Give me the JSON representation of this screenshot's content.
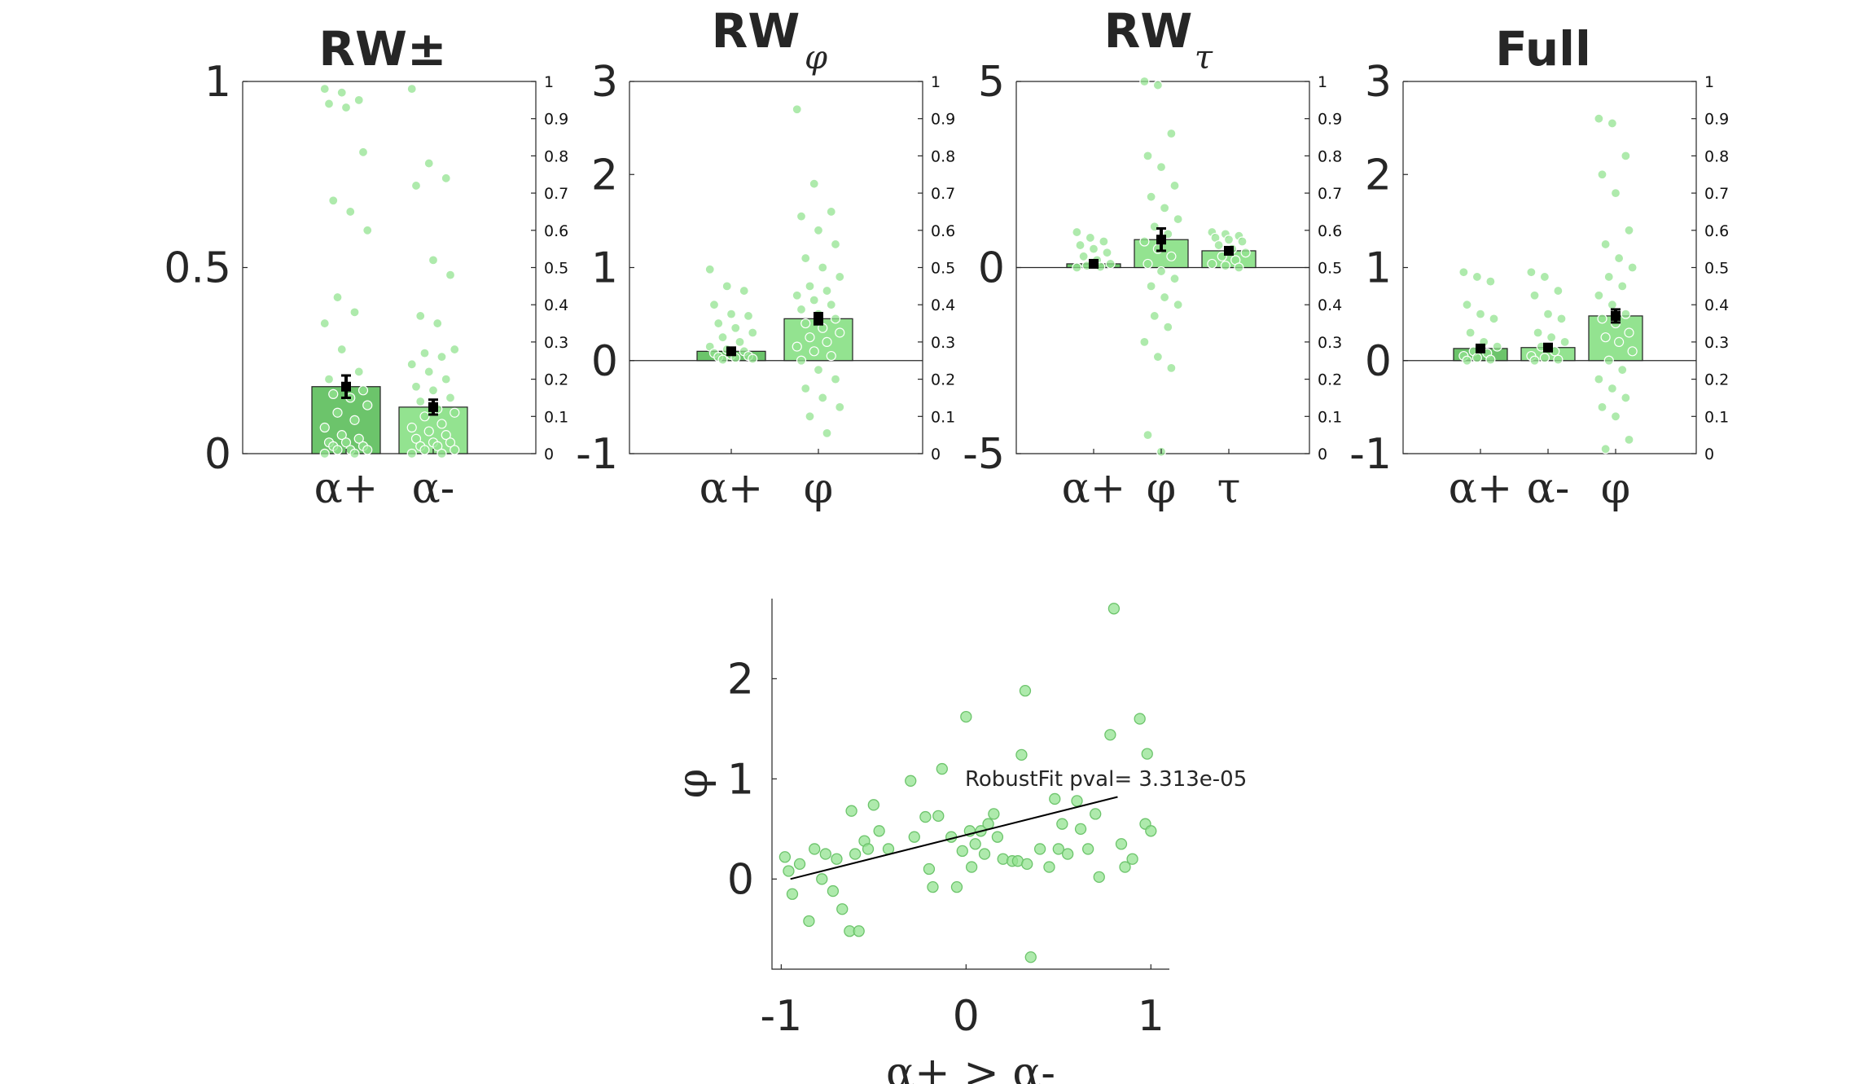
{
  "chart_data": [
    {
      "type": "bar",
      "title": "RW±",
      "subtitle": "",
      "categories": [
        "α+",
        "α-"
      ],
      "values": [
        0.18,
        0.125
      ],
      "errors": [
        0.03,
        0.02
      ],
      "ylim": [
        0,
        1
      ],
      "yticks": [
        "1",
        "0.5",
        "0"
      ],
      "ytick_values": [
        1,
        0.5,
        0
      ],
      "right_ticks": [
        "1",
        "0.9",
        "0.8",
        "0.7",
        "0.6",
        "0.5",
        "0.4",
        "0.3",
        "0.2",
        "0.1",
        "0"
      ],
      "points": [
        [
          0.98,
          0.97,
          0.95,
          0.94,
          0.93,
          0.81,
          0.68,
          0.65,
          0.6,
          0.42,
          0.38,
          0.35,
          0.28,
          0.22,
          0.2,
          0.18,
          0.17,
          0.16,
          0.15,
          0.13,
          0.11,
          0.09,
          0.07,
          0.05,
          0.04,
          0.03,
          0.03,
          0.02,
          0.02,
          0.01,
          0.01,
          0.01,
          0.0,
          0.0
        ],
        [
          0.98,
          0.78,
          0.74,
          0.72,
          0.52,
          0.48,
          0.37,
          0.35,
          0.28,
          0.27,
          0.26,
          0.24,
          0.22,
          0.2,
          0.18,
          0.17,
          0.15,
          0.14,
          0.12,
          0.11,
          0.1,
          0.08,
          0.07,
          0.06,
          0.05,
          0.04,
          0.03,
          0.03,
          0.02,
          0.02,
          0.01,
          0.01,
          0.0,
          0.0
        ]
      ]
    },
    {
      "type": "bar",
      "title": "RW",
      "subtitle": "φ",
      "categories": [
        "α+",
        "φ"
      ],
      "values": [
        0.1,
        0.45
      ],
      "errors": [
        0.03,
        0.06
      ],
      "ylim": [
        -1,
        3
      ],
      "yticks": [
        "3",
        "2",
        "1",
        "0",
        "-1"
      ],
      "ytick_values": [
        3,
        2,
        1,
        0,
        -1
      ],
      "right_ticks": [
        "1",
        "0.9",
        "0.8",
        "0.7",
        "0.6",
        "0.5",
        "0.4",
        "0.3",
        "0.2",
        "0.1",
        "0"
      ],
      "points": [
        [
          0.98,
          0.8,
          0.75,
          0.6,
          0.5,
          0.48,
          0.4,
          0.35,
          0.3,
          0.25,
          0.2,
          0.15,
          0.12,
          0.1,
          0.08,
          0.06,
          0.05,
          0.04,
          0.03,
          0.02,
          0.01
        ],
        [
          2.7,
          1.9,
          1.6,
          1.55,
          1.4,
          1.25,
          1.1,
          1.0,
          0.9,
          0.8,
          0.75,
          0.7,
          0.65,
          0.6,
          0.55,
          0.5,
          0.45,
          0.4,
          0.35,
          0.3,
          0.25,
          0.2,
          0.15,
          0.1,
          0.05,
          0.0,
          -0.1,
          -0.2,
          -0.3,
          -0.4,
          -0.5,
          -0.6,
          -0.78
        ]
      ]
    },
    {
      "type": "bar",
      "title": "RW",
      "subtitle": "τ",
      "categories": [
        "α+",
        "φ",
        "τ"
      ],
      "values": [
        0.1,
        0.75,
        0.45
      ],
      "errors": [
        0.05,
        0.3,
        0.07
      ],
      "ylim": [
        -5,
        5
      ],
      "yticks": [
        "5",
        "0",
        "-5"
      ],
      "ytick_values": [
        5,
        0,
        -5
      ],
      "right_ticks": [
        "1",
        "0.9",
        "0.8",
        "0.7",
        "0.6",
        "0.5",
        "0.4",
        "0.3",
        "0.2",
        "0.1",
        "0"
      ],
      "points": [
        [
          0.95,
          0.8,
          0.7,
          0.6,
          0.5,
          0.4,
          0.3,
          0.2,
          0.1,
          0.05,
          0.02,
          0.0
        ],
        [
          5.0,
          4.9,
          3.6,
          3.0,
          2.7,
          2.2,
          1.9,
          1.6,
          1.3,
          1.1,
          0.9,
          0.7,
          0.5,
          0.3,
          0.1,
          -0.1,
          -0.3,
          -0.5,
          -0.8,
          -1.0,
          -1.3,
          -1.6,
          -2.0,
          -2.4,
          -2.7,
          -4.5,
          -4.95
        ],
        [
          0.95,
          0.9,
          0.85,
          0.8,
          0.75,
          0.7,
          0.6,
          0.5,
          0.4,
          0.3,
          0.2,
          0.1,
          0.05,
          0.0
        ]
      ]
    },
    {
      "type": "bar",
      "title": "Full",
      "subtitle": "",
      "categories": [
        "α+",
        "α-",
        "φ"
      ],
      "values": [
        0.13,
        0.14,
        0.48
      ],
      "errors": [
        0.03,
        0.03,
        0.07
      ],
      "ylim": [
        -1,
        3
      ],
      "yticks": [
        "3",
        "2",
        "1",
        "0",
        "-1"
      ],
      "ytick_values": [
        3,
        2,
        1,
        0,
        -1
      ],
      "right_ticks": [
        "1",
        "0.9",
        "0.8",
        "0.7",
        "0.6",
        "0.5",
        "0.4",
        "0.3",
        "0.2",
        "0.1",
        "0"
      ],
      "points": [
        [
          0.95,
          0.9,
          0.85,
          0.6,
          0.5,
          0.45,
          0.3,
          0.2,
          0.15,
          0.1,
          0.08,
          0.05,
          0.03,
          0.01,
          0.0
        ],
        [
          0.95,
          0.9,
          0.75,
          0.7,
          0.5,
          0.45,
          0.3,
          0.25,
          0.2,
          0.15,
          0.1,
          0.05,
          0.03,
          0.01,
          0.0
        ],
        [
          2.6,
          2.55,
          2.2,
          2.0,
          1.8,
          1.4,
          1.25,
          1.1,
          1.0,
          0.9,
          0.8,
          0.7,
          0.6,
          0.5,
          0.45,
          0.4,
          0.3,
          0.25,
          0.2,
          0.1,
          0.0,
          -0.1,
          -0.2,
          -0.3,
          -0.4,
          -0.5,
          -0.6,
          -0.85,
          -0.95
        ]
      ]
    },
    {
      "type": "scatter",
      "xlabel": "α+ > α-",
      "ylabel": "φ",
      "xlim": [
        -1.05,
        1.1
      ],
      "ylim": [
        -0.9,
        2.8
      ],
      "xticks": [
        "-1",
        "0",
        "1"
      ],
      "xtick_values": [
        -1,
        0,
        1
      ],
      "yticks": [
        "2",
        "1",
        "0"
      ],
      "ytick_values": [
        2,
        1,
        0
      ],
      "annotation": "RobustFit pval= 3.313e-05",
      "fit": {
        "x": [
          -0.95,
          0.82
        ],
        "y": [
          0.0,
          0.82
        ]
      },
      "points": [
        [
          -0.98,
          0.22
        ],
        [
          -0.96,
          0.08
        ],
        [
          -0.94,
          -0.15
        ],
        [
          -0.9,
          0.15
        ],
        [
          -0.85,
          -0.42
        ],
        [
          -0.82,
          0.3
        ],
        [
          -0.78,
          0.0
        ],
        [
          -0.76,
          0.25
        ],
        [
          -0.72,
          -0.12
        ],
        [
          -0.7,
          0.2
        ],
        [
          -0.67,
          -0.3
        ],
        [
          -0.63,
          -0.52
        ],
        [
          -0.62,
          0.68
        ],
        [
          -0.6,
          0.25
        ],
        [
          -0.58,
          -0.52
        ],
        [
          -0.55,
          0.38
        ],
        [
          -0.53,
          0.3
        ],
        [
          -0.5,
          0.74
        ],
        [
          -0.47,
          0.48
        ],
        [
          -0.42,
          0.3
        ],
        [
          -0.3,
          0.98
        ],
        [
          -0.28,
          0.42
        ],
        [
          -0.22,
          0.62
        ],
        [
          -0.2,
          0.1
        ],
        [
          -0.18,
          -0.08
        ],
        [
          -0.15,
          0.63
        ],
        [
          -0.13,
          1.1
        ],
        [
          -0.08,
          0.42
        ],
        [
          -0.05,
          -0.08
        ],
        [
          -0.02,
          0.28
        ],
        [
          0.0,
          1.62
        ],
        [
          0.02,
          0.48
        ],
        [
          0.03,
          0.12
        ],
        [
          0.05,
          0.35
        ],
        [
          0.08,
          0.48
        ],
        [
          0.1,
          0.25
        ],
        [
          0.12,
          0.55
        ],
        [
          0.15,
          0.65
        ],
        [
          0.17,
          0.42
        ],
        [
          0.2,
          0.2
        ],
        [
          0.25,
          0.18
        ],
        [
          0.28,
          0.18
        ],
        [
          0.3,
          1.24
        ],
        [
          0.32,
          1.88
        ],
        [
          0.33,
          0.15
        ],
        [
          0.35,
          -0.78
        ],
        [
          0.4,
          0.3
        ],
        [
          0.45,
          0.12
        ],
        [
          0.48,
          0.8
        ],
        [
          0.5,
          0.3
        ],
        [
          0.52,
          0.55
        ],
        [
          0.55,
          0.25
        ],
        [
          0.6,
          0.78
        ],
        [
          0.62,
          0.5
        ],
        [
          0.66,
          0.3
        ],
        [
          0.7,
          0.65
        ],
        [
          0.72,
          0.02
        ],
        [
          0.78,
          1.44
        ],
        [
          0.8,
          2.7
        ],
        [
          0.84,
          0.35
        ],
        [
          0.86,
          0.12
        ],
        [
          0.9,
          0.2
        ],
        [
          0.94,
          1.6
        ],
        [
          0.97,
          0.55
        ],
        [
          0.98,
          1.25
        ],
        [
          1.0,
          0.48
        ]
      ]
    }
  ]
}
